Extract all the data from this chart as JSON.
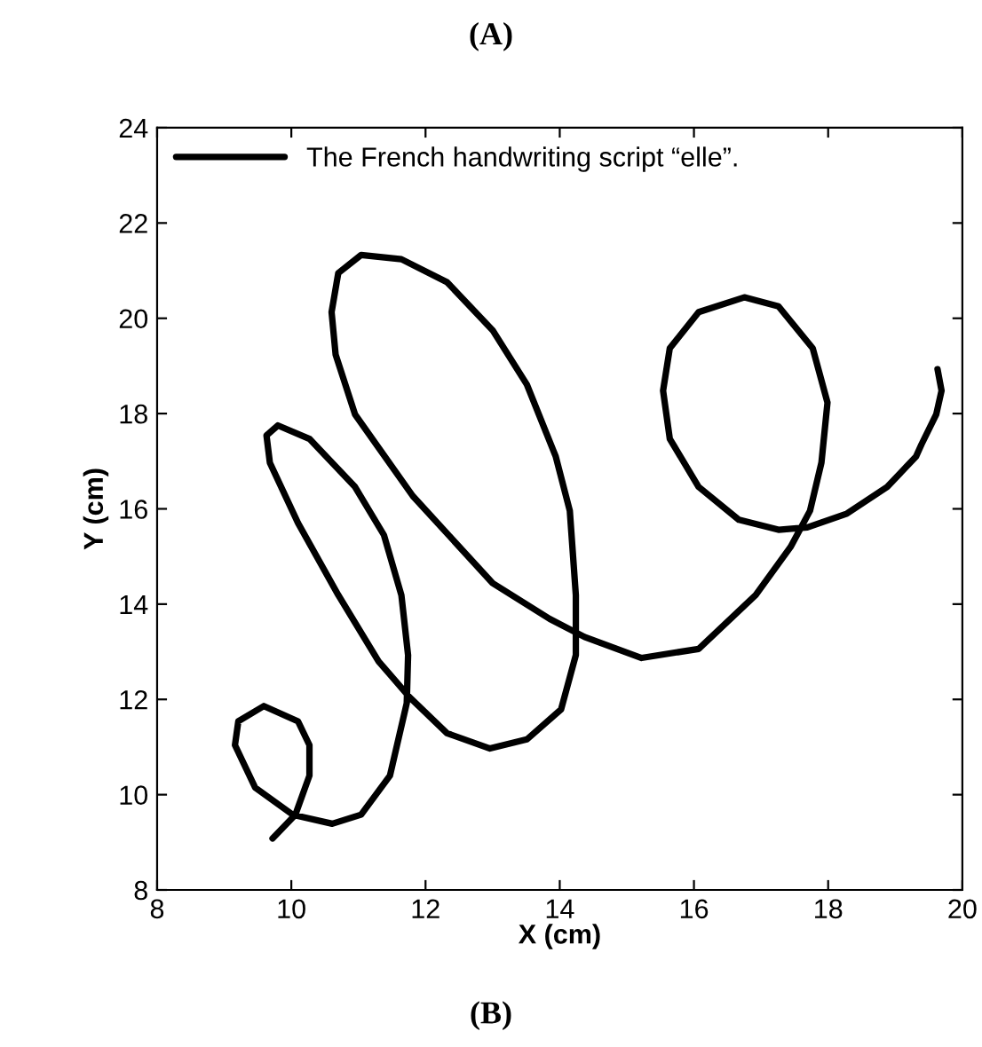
{
  "chart_data": {
    "type": "line",
    "title": "(A)",
    "xlabel": "X (cm)",
    "ylabel": "Y (cm)",
    "annotations": [
      "(B)"
    ],
    "xlim": [
      8,
      20
    ],
    "ylim": [
      8,
      24
    ],
    "xticks": [
      8,
      10,
      12,
      14,
      16,
      18,
      20
    ],
    "yticks": [
      8,
      10,
      12,
      14,
      16,
      18,
      20,
      22,
      24
    ],
    "grid": false,
    "legend": "top left",
    "marker": "none",
    "line_style": "solid",
    "series": [
      {
        "name": "The French handwriting script “elle”.",
        "color": "#000000",
        "x": [
          9.72,
          10.06,
          10.27,
          10.27,
          10.1,
          9.59,
          9.21,
          9.16,
          9.46,
          10.02,
          10.61,
          11.04,
          11.47,
          11.72,
          11.74,
          11.64,
          11.38,
          10.95,
          10.27,
          9.8,
          9.63,
          9.68,
          10.1,
          10.7,
          11.3,
          11.76,
          12.32,
          12.96,
          13.51,
          14.02,
          14.24,
          14.24,
          14.15,
          13.94,
          13.51,
          13.0,
          12.32,
          11.64,
          11.04,
          10.7,
          10.6,
          10.66,
          10.95,
          11.81,
          13.0,
          13.85,
          14.37,
          15.22,
          16.07,
          16.92,
          17.44,
          17.73,
          17.9,
          17.99,
          17.77,
          17.26,
          16.75,
          16.07,
          15.64,
          15.54,
          15.64,
          16.07,
          16.67,
          17.26,
          17.69,
          18.28,
          18.88,
          19.31,
          19.39,
          19.61,
          19.69,
          19.63
        ],
        "values": [
          9.08,
          9.58,
          10.4,
          11.04,
          11.54,
          11.86,
          11.54,
          11.04,
          10.15,
          9.58,
          9.39,
          9.58,
          10.4,
          11.92,
          12.93,
          14.19,
          15.45,
          16.46,
          17.47,
          17.75,
          17.54,
          16.97,
          15.7,
          14.19,
          12.8,
          12.05,
          11.29,
          10.97,
          11.16,
          11.79,
          12.93,
          14.19,
          15.96,
          17.1,
          18.61,
          19.75,
          20.76,
          21.24,
          21.33,
          20.95,
          20.13,
          19.24,
          17.98,
          16.27,
          14.44,
          13.69,
          13.31,
          12.87,
          13.06,
          14.19,
          15.2,
          15.96,
          16.97,
          18.23,
          19.37,
          20.25,
          20.44,
          20.13,
          19.37,
          18.48,
          17.47,
          16.46,
          15.77,
          15.56,
          15.61,
          15.9,
          16.46,
          17.1,
          17.35,
          17.98,
          18.48,
          18.93
        ]
      }
    ]
  }
}
